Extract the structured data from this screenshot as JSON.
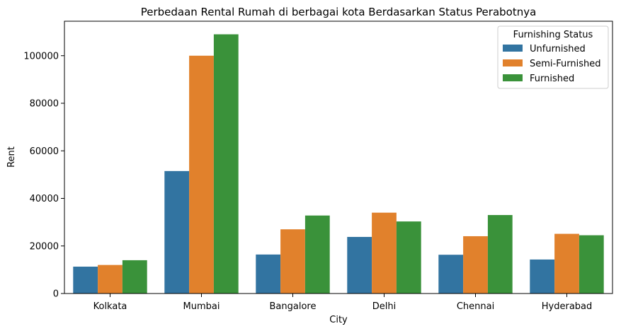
{
  "chart_data": {
    "type": "bar",
    "title": "Perbedaan Rental Rumah di berbagai kota Berdasarkan Status Perabotnya",
    "xlabel": "City",
    "ylabel": "Rent",
    "categories": [
      "Kolkata",
      "Mumbai",
      "Bangalore",
      "Delhi",
      "Chennai",
      "Hyderabad"
    ],
    "ylim": [
      0,
      114500
    ],
    "yticks": [
      0,
      20000,
      40000,
      60000,
      80000,
      100000
    ],
    "grid": false,
    "legend": {
      "title": "Furnishing Status",
      "placement": "top-right"
    },
    "series": [
      {
        "name": "Unfurnished",
        "color": "#3274a1",
        "values": [
          11300,
          51500,
          16400,
          23800,
          16300,
          14300
        ]
      },
      {
        "name": "Semi-Furnished",
        "color": "#e1812c",
        "values": [
          12000,
          100000,
          27000,
          34000,
          24100,
          25100
        ]
      },
      {
        "name": "Furnished",
        "color": "#3a923a",
        "values": [
          14000,
          109000,
          32800,
          30300,
          33000,
          24500
        ]
      }
    ]
  }
}
